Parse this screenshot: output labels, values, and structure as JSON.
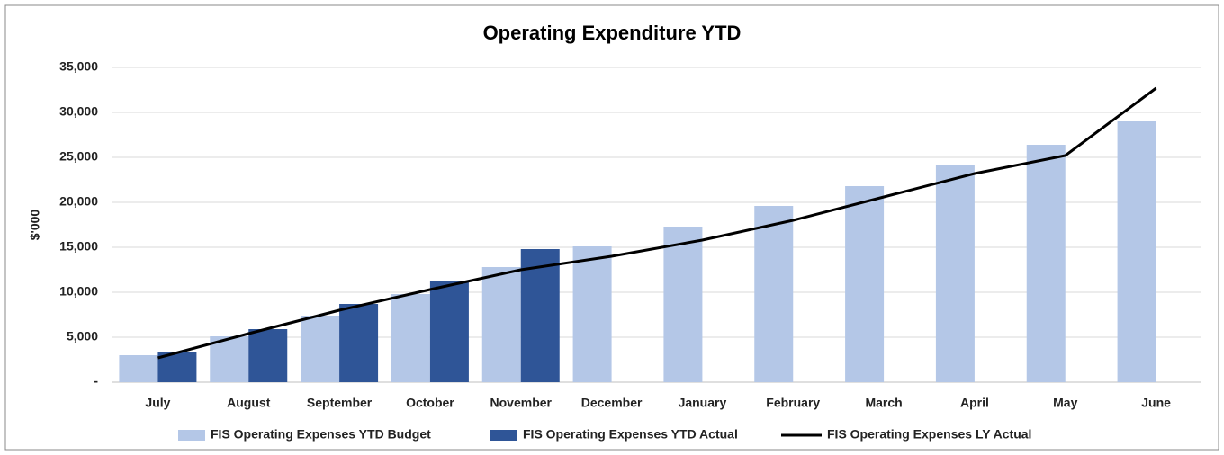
{
  "chart_data": {
    "type": "bar",
    "title": "Operating Expenditure YTD",
    "y_label": "$'000",
    "categories": [
      "July",
      "August",
      "September",
      "October",
      "November",
      "December",
      "January",
      "February",
      "March",
      "April",
      "May",
      "June"
    ],
    "series": [
      {
        "name": "FIS Operating Expenses YTD Budget",
        "type": "bar",
        "color": "#b4c7e7",
        "values": [
          3000,
          5100,
          7400,
          9800,
          12800,
          15100,
          17300,
          19600,
          21800,
          24200,
          26400,
          29000
        ]
      },
      {
        "name": "FIS Operating Expenses YTD Actual",
        "type": "bar",
        "color": "#2f5597",
        "values": [
          3400,
          5900,
          8700,
          11300,
          14800,
          null,
          null,
          null,
          null,
          null,
          null,
          null
        ]
      },
      {
        "name": "FIS Operating Expenses LY Actual",
        "type": "line",
        "color": "#000000",
        "values": [
          2700,
          5400,
          8000,
          10300,
          12500,
          14000,
          15800,
          18000,
          20600,
          23200,
          25200,
          32700
        ]
      }
    ],
    "ylim": [
      0,
      35000
    ],
    "yticks": [
      {
        "value": 0,
        "label": "-"
      },
      {
        "value": 5000,
        "label": "5,000"
      },
      {
        "value": 10000,
        "label": "10,000"
      },
      {
        "value": 15000,
        "label": "15,000"
      },
      {
        "value": 20000,
        "label": "20,000"
      },
      {
        "value": 25000,
        "label": "25,000"
      },
      {
        "value": 30000,
        "label": "30,000"
      },
      {
        "value": 35000,
        "label": "35,000"
      }
    ],
    "grid": true,
    "legend": "bottom"
  }
}
